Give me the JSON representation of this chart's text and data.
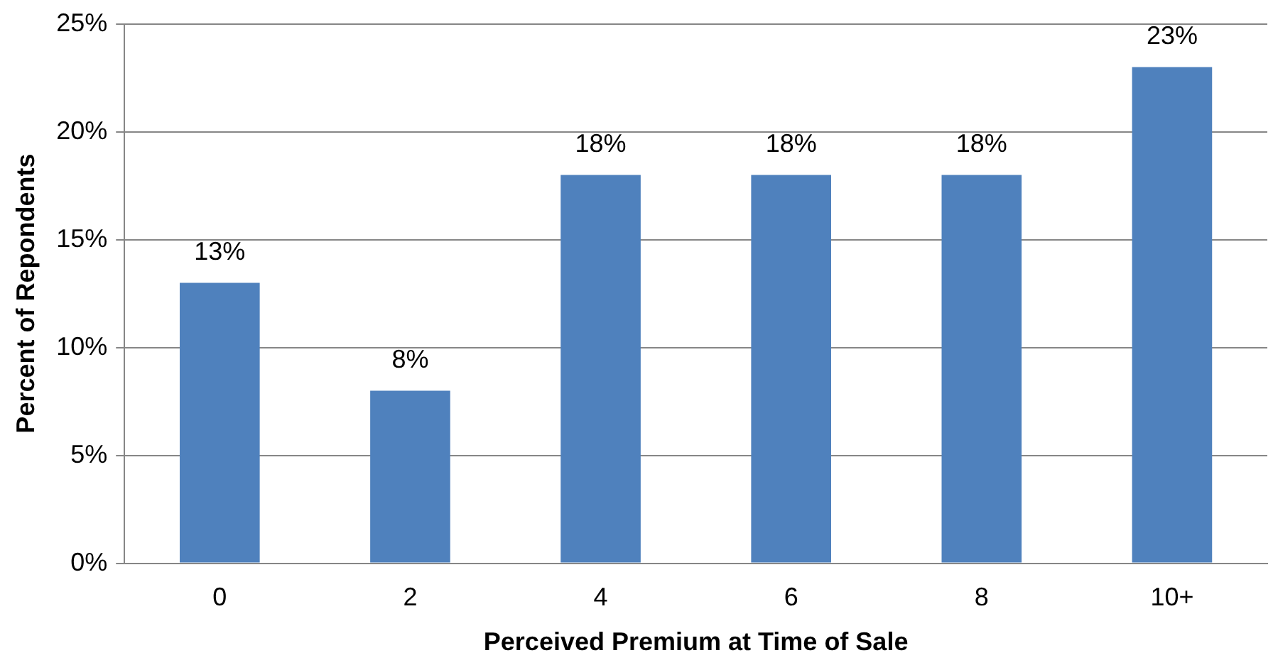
{
  "chart_data": {
    "type": "bar",
    "xlabel": "Perceived Premium at Time of Sale",
    "ylabel": "Percent of Repondents",
    "categories": [
      "0",
      "2",
      "4",
      "6",
      "8",
      "10+"
    ],
    "values": [
      13,
      8,
      18,
      18,
      18,
      23
    ],
    "value_labels": [
      "13%",
      "8%",
      "18%",
      "18%",
      "18%",
      "23%"
    ],
    "color": "#4f81bd",
    "ylim": [
      0,
      25
    ],
    "yticks": [
      {
        "value": 0,
        "label": "0%"
      },
      {
        "value": 5,
        "label": "5%"
      },
      {
        "value": 10,
        "label": "10%"
      },
      {
        "value": 15,
        "label": "15%"
      },
      {
        "value": 20,
        "label": "20%"
      },
      {
        "value": 25,
        "label": "25%"
      }
    ],
    "grid": "y",
    "legend": false
  }
}
